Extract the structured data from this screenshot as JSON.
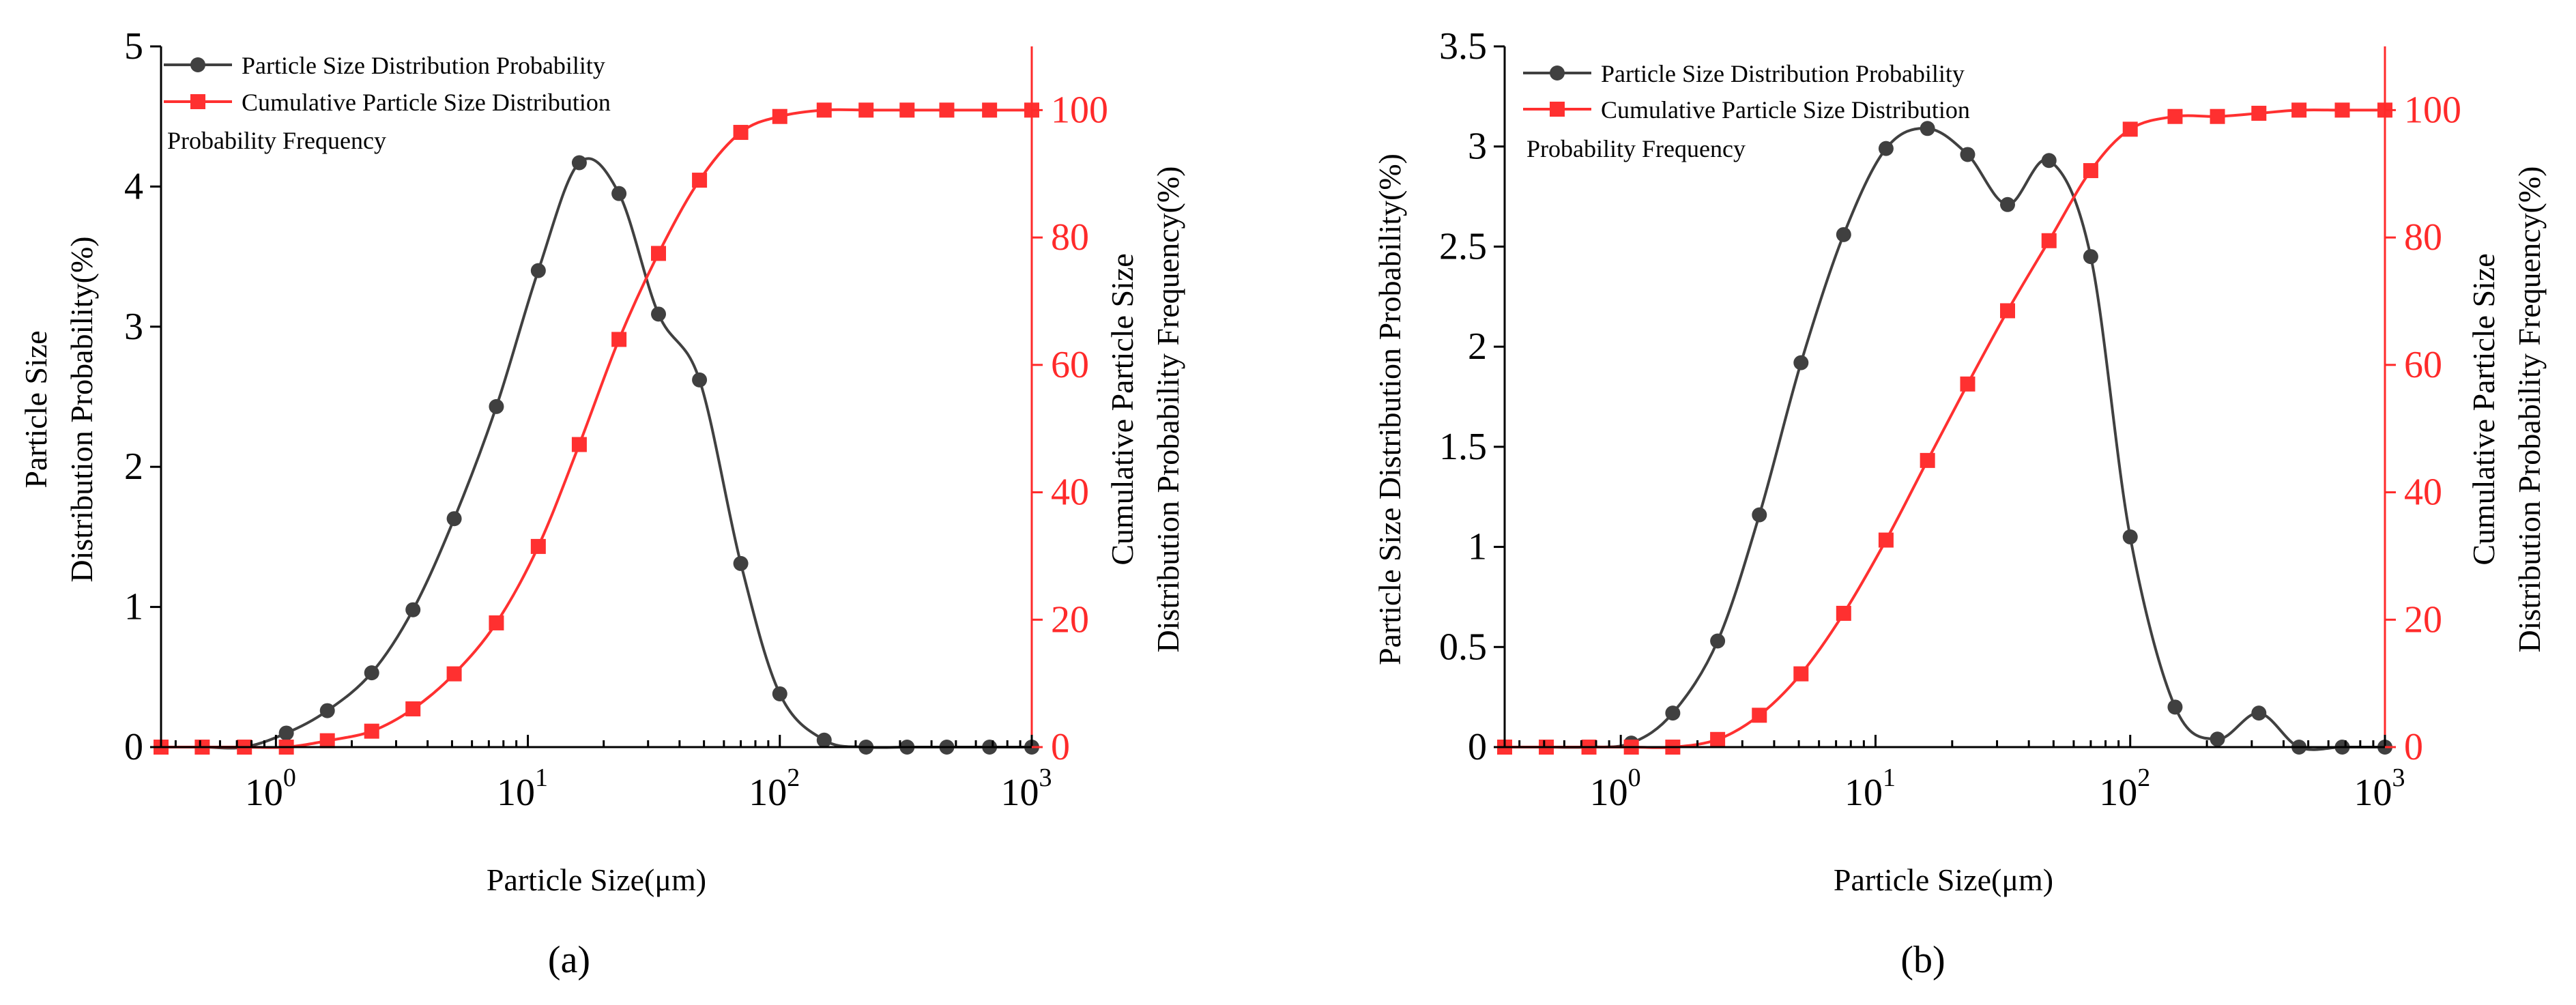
{
  "chart_data": [
    {
      "panel_label": "(a)",
      "type": "line",
      "xlabel": "Particle Size(μm)",
      "ylabel_lines": [
        "Particle Size",
        "Distribution Probability(%)"
      ],
      "y2label_lines": [
        "Cumulative Particle Size",
        "Distribution Probability Frequency(%)"
      ],
      "xscale": "log",
      "xlim": [
        0.35,
        1000
      ],
      "xticks": [
        1,
        10,
        100,
        1000
      ],
      "xtick_labels": [
        {
          "base": "10",
          "exp": "0"
        },
        {
          "base": "10",
          "exp": "1"
        },
        {
          "base": "10",
          "exp": "2"
        },
        {
          "base": "10",
          "exp": "3"
        }
      ],
      "ylim": [
        0,
        5
      ],
      "yticks": [
        0,
        1,
        2,
        3,
        4,
        5
      ],
      "ytick_labels": [
        "0",
        "1",
        "2",
        "3",
        "4",
        "5"
      ],
      "y2lim": [
        0,
        110
      ],
      "y2ticks": [
        0,
        20,
        40,
        60,
        80,
        100
      ],
      "y2tick_labels": [
        "0",
        "20",
        "40",
        "60",
        "80",
        "100"
      ],
      "legend": {
        "position": "top-left",
        "entries": [
          "Particle Size Distribution Probability",
          "Cumulative Particle Size Distribution"
        ],
        "extra_line": "Probability Frequency"
      },
      "series": [
        {
          "name": "Particle Size Distribution Probability",
          "axis": "left",
          "color": "#404040",
          "marker": "circle",
          "x": [
            0.35,
            0.51,
            0.75,
            1.1,
            1.6,
            2.4,
            3.5,
            5.1,
            7.5,
            11,
            16,
            23,
            33,
            48,
            70,
            100,
            150,
            220,
            320,
            460,
            680,
            1000
          ],
          "y": [
            0,
            0,
            0,
            0.1,
            0.26,
            0.53,
            0.98,
            1.63,
            2.43,
            3.4,
            4.17,
            3.95,
            3.09,
            2.62,
            1.31,
            0.38,
            0.05,
            0,
            0,
            0,
            0,
            0
          ]
        },
        {
          "name": "Cumulative Particle Size Distribution",
          "axis": "right",
          "color": "#ff3030",
          "marker": "square",
          "x": [
            0.35,
            0.51,
            0.75,
            1.1,
            1.6,
            2.4,
            3.5,
            5.1,
            7.5,
            11,
            16,
            23,
            33,
            48,
            70,
            100,
            150,
            220,
            320,
            460,
            680,
            1000
          ],
          "y": [
            0,
            0,
            0,
            0,
            1,
            2.5,
            6,
            11.5,
            19.5,
            31.5,
            47.5,
            64,
            77.5,
            89,
            96.5,
            99,
            100,
            100,
            100,
            100,
            100,
            100
          ]
        }
      ]
    },
    {
      "panel_label": "(b)",
      "type": "line",
      "xlabel": "Particle Size(μm)",
      "ylabel_lines": [
        "Particle Size Distribution Probability(%)"
      ],
      "y2label_lines": [
        "Cumulative Particle Size",
        "Distribution Probability Frequency(%)"
      ],
      "xscale": "log",
      "xlim": [
        0.35,
        1000
      ],
      "xticks": [
        1,
        10,
        100,
        1000
      ],
      "xtick_labels": [
        {
          "base": "10",
          "exp": "0"
        },
        {
          "base": "10",
          "exp": "1"
        },
        {
          "base": "10",
          "exp": "2"
        },
        {
          "base": "10",
          "exp": "3"
        }
      ],
      "ylim": [
        0,
        3.5
      ],
      "yticks": [
        0,
        0.5,
        1,
        1.5,
        2,
        2.5,
        3,
        3.5
      ],
      "ytick_labels": [
        "0",
        "0.5",
        "1",
        "1.5",
        "2",
        "2.5",
        "3",
        "3.5"
      ],
      "y2lim": [
        0,
        110
      ],
      "y2ticks": [
        0,
        20,
        40,
        60,
        80,
        100
      ],
      "y2tick_labels": [
        "0",
        "20",
        "40",
        "60",
        "80",
        "100"
      ],
      "legend": {
        "position": "top-left",
        "entries": [
          "Particle Size Distribution Probability",
          "Cumulative Particle Size Distribution"
        ],
        "extra_line": "Probability Frequency"
      },
      "series": [
        {
          "name": "Particle Size Distribution Probability",
          "axis": "left",
          "color": "#404040",
          "marker": "circle",
          "x": [
            0.35,
            0.51,
            0.75,
            1.1,
            1.6,
            2.4,
            3.5,
            5.1,
            7.5,
            11,
            16,
            23,
            33,
            48,
            70,
            100,
            150,
            220,
            320,
            460,
            680,
            1000
          ],
          "y": [
            0,
            0,
            0,
            0.02,
            0.17,
            0.53,
            1.16,
            1.92,
            2.56,
            2.99,
            3.09,
            2.96,
            2.71,
            2.93,
            2.45,
            1.05,
            0.2,
            0.04,
            0.17,
            0,
            0,
            0
          ]
        },
        {
          "name": "Cumulative Particle Size Distribution",
          "axis": "right",
          "color": "#ff3030",
          "marker": "square",
          "x": [
            0.35,
            0.51,
            0.75,
            1.1,
            1.6,
            2.4,
            3.5,
            5.1,
            7.5,
            11,
            16,
            23,
            33,
            48,
            70,
            100,
            150,
            220,
            320,
            460,
            680,
            1000
          ],
          "y": [
            0,
            0,
            0,
            0,
            0,
            1.2,
            5,
            11.5,
            21,
            32.5,
            45,
            57,
            68.5,
            79.5,
            90.5,
            97,
            99,
            99,
            99.5,
            100,
            100,
            100
          ]
        }
      ]
    }
  ]
}
